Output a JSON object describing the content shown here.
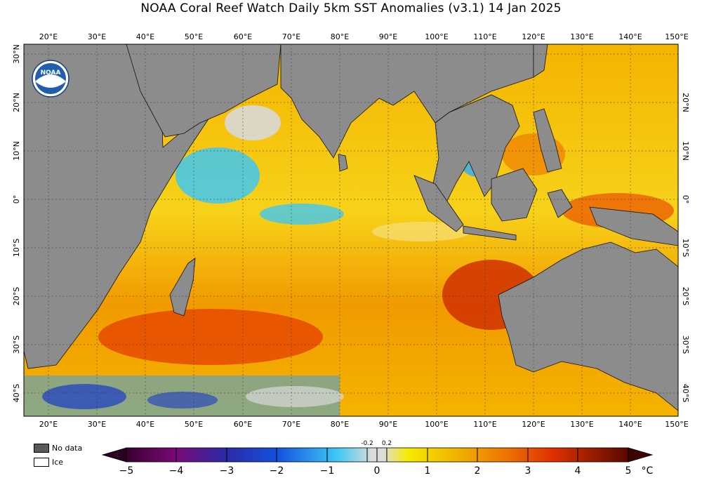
{
  "title": "NOAA Coral Reef Watch Daily 5km SST Anomalies  (v3.1)    14 Jan 2025",
  "logo_text": "NOAA",
  "lon_labels": [
    "20°E",
    "30°E",
    "40°E",
    "50°E",
    "60°E",
    "70°E",
    "80°E",
    "90°E",
    "100°E",
    "110°E",
    "120°E",
    "130°E",
    "140°E",
    "150°E"
  ],
  "lat_labels": [
    "30°N",
    "20°N",
    "10°N",
    "0°",
    "10°S",
    "20°S",
    "30°S",
    "40°S"
  ],
  "right_lat_labels": [
    "20°N",
    "10°N",
    "0°",
    "10°S",
    "20°S",
    "30°S",
    "40°S"
  ],
  "legend": {
    "no_data": "No data",
    "ice": "Ice"
  },
  "colorbar": {
    "ticks": [
      "−5",
      "−4",
      "−3",
      "−2",
      "−1",
      "0",
      "1",
      "2",
      "3",
      "4",
      "5"
    ],
    "inner_ticks": [
      "-0.2",
      "0.2"
    ],
    "unit": "°C"
  },
  "colors": {
    "land": "#8c8c8c",
    "neutral": "#d9d9d9",
    "ocean_warm": "#f5c400",
    "ocean_hot": "#e53300"
  }
}
